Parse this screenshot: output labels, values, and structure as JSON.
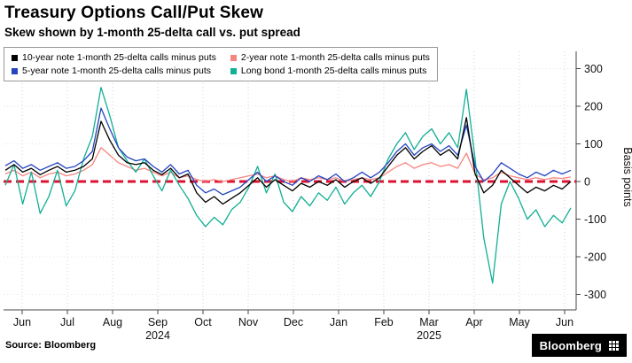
{
  "header": {
    "title": "Treasury Options Call/Put Skew",
    "subtitle": "Skew shown by 1-month 25-delta call vs. put spread"
  },
  "legend": {
    "items": [
      {
        "label": "10-year note 1-month 25-delta calls minus puts",
        "color": "#000000"
      },
      {
        "label": "2-year note 1-month 25-delta calls minus puts",
        "color": "#f5867f"
      },
      {
        "label": "5-year note 1-month 25-delta calls minus puts",
        "color": "#2444c0"
      },
      {
        "label": "Long bond 1-month 25-delta calls minus puts",
        "color": "#11af94"
      }
    ]
  },
  "chart_data": {
    "type": "line",
    "title": "Treasury Options Call/Put Skew",
    "subtitle": "Skew shown by 1-month 25-delta call vs. put spread",
    "ylabel": "Basis points",
    "y_ticks": [
      300,
      200,
      100,
      0,
      -100,
      -200,
      -300
    ],
    "ylim": [
      -340,
      340
    ],
    "x_tick_labels": [
      "Jun",
      "Jul",
      "Aug",
      "Sep",
      "Oct",
      "Nov",
      "Dec",
      "Jan",
      "Feb",
      "Mar",
      "Apr",
      "May",
      "Jun"
    ],
    "year_labels": [
      {
        "label": "2024",
        "tick_index": 3
      },
      {
        "label": "2025",
        "tick_index": 9
      }
    ],
    "grid": "dotted",
    "legend_position": "top-left",
    "zero_line": {
      "value": 0,
      "color": "#dd1130",
      "style": "dashed"
    },
    "series": [
      {
        "name": "10-year note 1-month 25-delta calls minus puts",
        "color": "#000000",
        "values": [
          30,
          45,
          25,
          35,
          18,
          30,
          40,
          25,
          30,
          40,
          60,
          160,
          110,
          70,
          50,
          45,
          50,
          30,
          18,
          35,
          10,
          20,
          -30,
          -55,
          -40,
          -60,
          -45,
          -30,
          -10,
          10,
          -15,
          5,
          -10,
          -25,
          -5,
          -15,
          0,
          -10,
          5,
          -15,
          0,
          10,
          -5,
          10,
          40,
          70,
          90,
          60,
          80,
          95,
          70,
          85,
          60,
          170,
          20,
          -30,
          -10,
          30,
          10,
          -10,
          -30,
          -15,
          -25,
          -10,
          -20,
          0
        ]
      },
      {
        "name": "2-year note 1-month 25-delta calls minus puts",
        "color": "#f5867f",
        "values": [
          20,
          30,
          15,
          25,
          10,
          20,
          25,
          15,
          20,
          30,
          45,
          90,
          70,
          50,
          40,
          30,
          35,
          25,
          15,
          25,
          10,
          15,
          5,
          0,
          5,
          0,
          5,
          10,
          15,
          20,
          10,
          15,
          5,
          0,
          10,
          5,
          10,
          5,
          10,
          0,
          5,
          10,
          5,
          10,
          25,
          40,
          50,
          35,
          45,
          50,
          40,
          45,
          35,
          75,
          20,
          5,
          10,
          25,
          15,
          10,
          5,
          10,
          5,
          10,
          8,
          12
        ]
      },
      {
        "name": "5-year note 1-month 25-delta calls minus puts",
        "color": "#2444c0",
        "values": [
          42,
          55,
          35,
          45,
          30,
          40,
          50,
          35,
          40,
          55,
          80,
          195,
          140,
          90,
          65,
          55,
          60,
          40,
          25,
          45,
          20,
          30,
          -10,
          -30,
          -20,
          -35,
          -25,
          -15,
          5,
          25,
          0,
          15,
          0,
          -10,
          10,
          0,
          15,
          5,
          20,
          0,
          10,
          25,
          10,
          25,
          50,
          80,
          100,
          70,
          90,
          100,
          80,
          95,
          70,
          150,
          40,
          0,
          20,
          50,
          35,
          20,
          10,
          25,
          15,
          30,
          20,
          30
        ]
      },
      {
        "name": "Long bond 1-month 25-delta calls minus puts",
        "color": "#11af94",
        "values": [
          -10,
          45,
          -60,
          25,
          -85,
          -40,
          30,
          -65,
          -25,
          60,
          120,
          250,
          175,
          90,
          55,
          25,
          60,
          15,
          -25,
          30,
          -10,
          -45,
          -90,
          -120,
          -95,
          -115,
          -75,
          -55,
          -15,
          40,
          -30,
          20,
          -55,
          -80,
          -40,
          -65,
          -30,
          -50,
          -15,
          -60,
          -30,
          -10,
          -40,
          0,
          60,
          100,
          130,
          85,
          120,
          140,
          100,
          130,
          90,
          245,
          60,
          -150,
          -270,
          -60,
          0,
          -45,
          -100,
          -75,
          -120,
          -90,
          -110,
          -70
        ]
      }
    ]
  },
  "footer": {
    "source_label": "Source: Bloomberg",
    "brand_label": "Bloomberg"
  }
}
